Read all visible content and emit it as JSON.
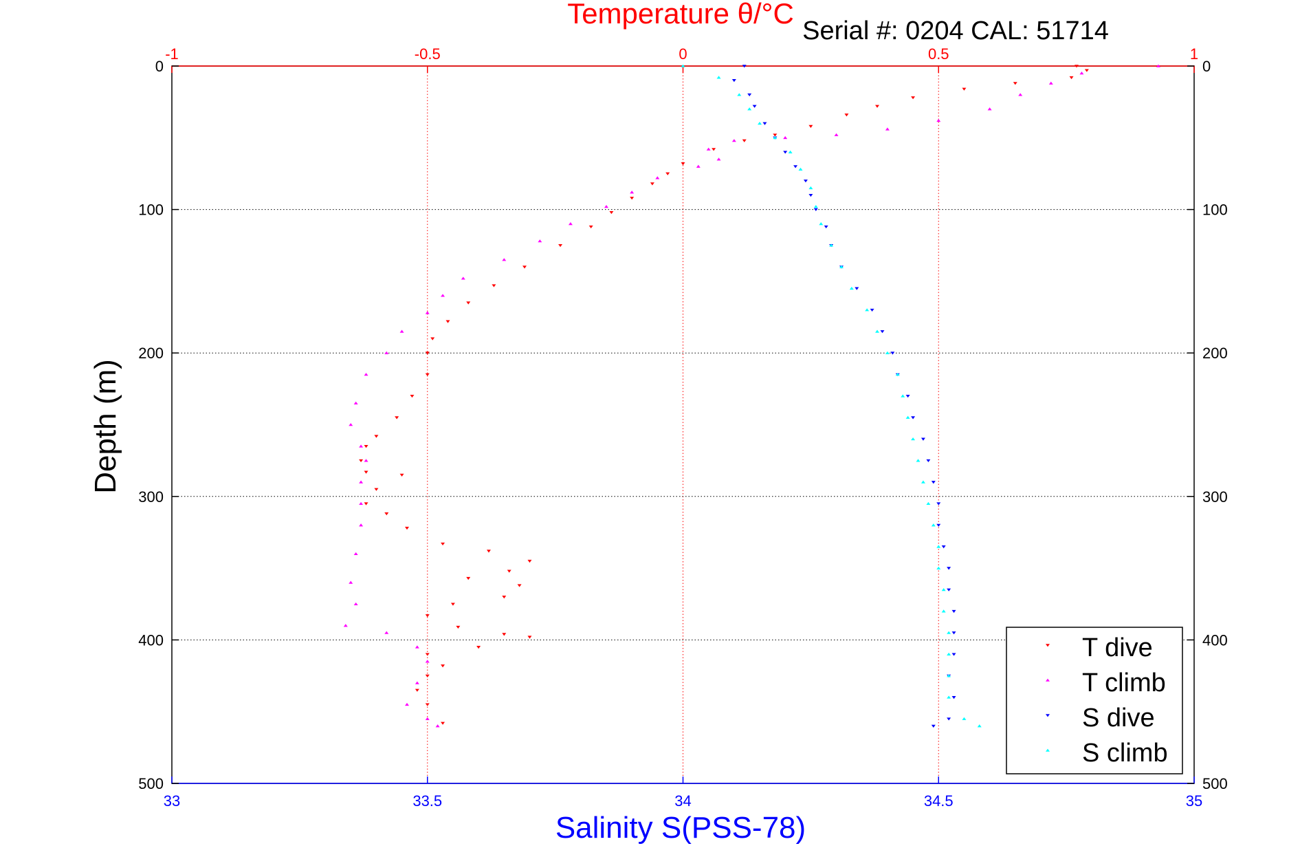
{
  "chart_data": {
    "type": "scatter",
    "title": "Temperature θ/°C",
    "subtitle": "Serial #: 0204   CAL: 51714",
    "xlabel_bottom": "Salinity S(PSS-78)",
    "ylabel": "Depth (m)",
    "x_top": {
      "lim": [
        -1,
        1
      ],
      "ticks": [
        -1,
        -0.5,
        0,
        0.5,
        1
      ],
      "tick_labels": [
        "-1",
        "-0.5",
        "0",
        "0.5",
        "1"
      ],
      "color": "#ff0000"
    },
    "x_bottom": {
      "lim": [
        33,
        35
      ],
      "ticks": [
        33,
        33.5,
        34,
        34.5,
        35
      ],
      "tick_labels": [
        "33",
        "33.5",
        "34",
        "34.5",
        "35"
      ],
      "color": "#0000ff"
    },
    "y": {
      "lim": [
        0,
        500
      ],
      "reversed": true,
      "ticks": [
        0,
        100,
        200,
        300,
        400,
        500
      ],
      "tick_labels": [
        "0",
        "100",
        "200",
        "300",
        "400",
        "500"
      ]
    },
    "grid": true,
    "legend_position": "bottom-right",
    "series": [
      {
        "name": "T dive",
        "axis": "top",
        "color": "#ff0000",
        "marker": "triangle-down",
        "points": [
          [
            0.77,
            0
          ],
          [
            0.79,
            3
          ],
          [
            0.76,
            8
          ],
          [
            0.65,
            12
          ],
          [
            0.55,
            16
          ],
          [
            0.45,
            22
          ],
          [
            0.38,
            28
          ],
          [
            0.32,
            34
          ],
          [
            0.25,
            42
          ],
          [
            0.18,
            48
          ],
          [
            0.12,
            52
          ],
          [
            0.06,
            58
          ],
          [
            0.0,
            68
          ],
          [
            -0.03,
            75
          ],
          [
            -0.06,
            82
          ],
          [
            -0.1,
            92
          ],
          [
            -0.14,
            102
          ],
          [
            -0.18,
            112
          ],
          [
            -0.24,
            125
          ],
          [
            -0.31,
            140
          ],
          [
            -0.37,
            153
          ],
          [
            -0.42,
            165
          ],
          [
            -0.46,
            178
          ],
          [
            -0.49,
            190
          ],
          [
            -0.5,
            200
          ],
          [
            -0.5,
            215
          ],
          [
            -0.53,
            230
          ],
          [
            -0.56,
            245
          ],
          [
            -0.6,
            258
          ],
          [
            -0.62,
            265
          ],
          [
            -0.63,
            275
          ],
          [
            -0.62,
            283
          ],
          [
            -0.55,
            285
          ],
          [
            -0.6,
            295
          ],
          [
            -0.62,
            305
          ],
          [
            -0.58,
            312
          ],
          [
            -0.54,
            322
          ],
          [
            -0.47,
            333
          ],
          [
            -0.38,
            338
          ],
          [
            -0.3,
            345
          ],
          [
            -0.34,
            352
          ],
          [
            -0.42,
            357
          ],
          [
            -0.32,
            362
          ],
          [
            -0.35,
            370
          ],
          [
            -0.45,
            375
          ],
          [
            -0.5,
            383
          ],
          [
            -0.44,
            391
          ],
          [
            -0.35,
            396
          ],
          [
            -0.3,
            398
          ],
          [
            -0.4,
            405
          ],
          [
            -0.5,
            410
          ],
          [
            -0.47,
            418
          ],
          [
            -0.5,
            425
          ],
          [
            -0.52,
            435
          ],
          [
            -0.5,
            445
          ],
          [
            -0.47,
            458
          ]
        ]
      },
      {
        "name": "T climb",
        "axis": "top",
        "color": "#ff00ff",
        "marker": "triangle-up",
        "points": [
          [
            0.93,
            0
          ],
          [
            0.78,
            5
          ],
          [
            0.72,
            12
          ],
          [
            0.66,
            20
          ],
          [
            0.6,
            30
          ],
          [
            0.5,
            38
          ],
          [
            0.4,
            44
          ],
          [
            0.3,
            48
          ],
          [
            0.2,
            50
          ],
          [
            0.1,
            52
          ],
          [
            0.05,
            58
          ],
          [
            0.07,
            65
          ],
          [
            0.03,
            70
          ],
          [
            -0.05,
            78
          ],
          [
            -0.1,
            88
          ],
          [
            -0.15,
            98
          ],
          [
            -0.22,
            110
          ],
          [
            -0.28,
            122
          ],
          [
            -0.35,
            135
          ],
          [
            -0.43,
            148
          ],
          [
            -0.47,
            160
          ],
          [
            -0.5,
            172
          ],
          [
            -0.55,
            185
          ],
          [
            -0.58,
            200
          ],
          [
            -0.62,
            215
          ],
          [
            -0.64,
            235
          ],
          [
            -0.65,
            250
          ],
          [
            -0.63,
            265
          ],
          [
            -0.62,
            275
          ],
          [
            -0.63,
            290
          ],
          [
            -0.63,
            305
          ],
          [
            -0.63,
            320
          ],
          [
            -0.64,
            340
          ],
          [
            -0.65,
            360
          ],
          [
            -0.64,
            375
          ],
          [
            -0.66,
            390
          ],
          [
            -0.58,
            395
          ],
          [
            -0.52,
            405
          ],
          [
            -0.5,
            415
          ],
          [
            -0.52,
            430
          ],
          [
            -0.54,
            445
          ],
          [
            -0.5,
            455
          ],
          [
            -0.48,
            460
          ]
        ]
      },
      {
        "name": "S dive",
        "axis": "bottom",
        "color": "#0000ff",
        "marker": "triangle-down",
        "points": [
          [
            34.12,
            0
          ],
          [
            34.1,
            10
          ],
          [
            34.13,
            20
          ],
          [
            34.14,
            28
          ],
          [
            34.16,
            40
          ],
          [
            34.18,
            50
          ],
          [
            34.2,
            60
          ],
          [
            34.22,
            70
          ],
          [
            34.24,
            80
          ],
          [
            34.25,
            90
          ],
          [
            34.26,
            100
          ],
          [
            34.28,
            112
          ],
          [
            34.29,
            125
          ],
          [
            34.31,
            140
          ],
          [
            34.34,
            155
          ],
          [
            34.37,
            170
          ],
          [
            34.39,
            185
          ],
          [
            34.41,
            200
          ],
          [
            34.42,
            215
          ],
          [
            34.44,
            230
          ],
          [
            34.45,
            245
          ],
          [
            34.47,
            260
          ],
          [
            34.48,
            275
          ],
          [
            34.49,
            290
          ],
          [
            34.5,
            305
          ],
          [
            34.5,
            320
          ],
          [
            34.51,
            335
          ],
          [
            34.52,
            350
          ],
          [
            34.52,
            365
          ],
          [
            34.53,
            380
          ],
          [
            34.53,
            395
          ],
          [
            34.53,
            410
          ],
          [
            34.52,
            425
          ],
          [
            34.53,
            440
          ],
          [
            34.52,
            455
          ],
          [
            34.49,
            460
          ]
        ]
      },
      {
        "name": "S climb",
        "axis": "bottom",
        "color": "#00ffff",
        "marker": "triangle-up",
        "points": [
          [
            34.0,
            0
          ],
          [
            34.07,
            8
          ],
          [
            34.11,
            20
          ],
          [
            34.13,
            30
          ],
          [
            34.15,
            40
          ],
          [
            34.18,
            50
          ],
          [
            34.21,
            60
          ],
          [
            34.23,
            72
          ],
          [
            34.25,
            85
          ],
          [
            34.26,
            98
          ],
          [
            34.27,
            110
          ],
          [
            34.29,
            125
          ],
          [
            34.31,
            140
          ],
          [
            34.33,
            155
          ],
          [
            34.36,
            170
          ],
          [
            34.38,
            185
          ],
          [
            34.4,
            200
          ],
          [
            34.42,
            215
          ],
          [
            34.43,
            230
          ],
          [
            34.44,
            245
          ],
          [
            34.45,
            260
          ],
          [
            34.46,
            275
          ],
          [
            34.47,
            290
          ],
          [
            34.48,
            305
          ],
          [
            34.49,
            320
          ],
          [
            34.5,
            335
          ],
          [
            34.5,
            350
          ],
          [
            34.51,
            365
          ],
          [
            34.51,
            380
          ],
          [
            34.52,
            395
          ],
          [
            34.52,
            410
          ],
          [
            34.52,
            425
          ],
          [
            34.52,
            440
          ],
          [
            34.55,
            455
          ],
          [
            34.58,
            460
          ]
        ]
      }
    ]
  }
}
